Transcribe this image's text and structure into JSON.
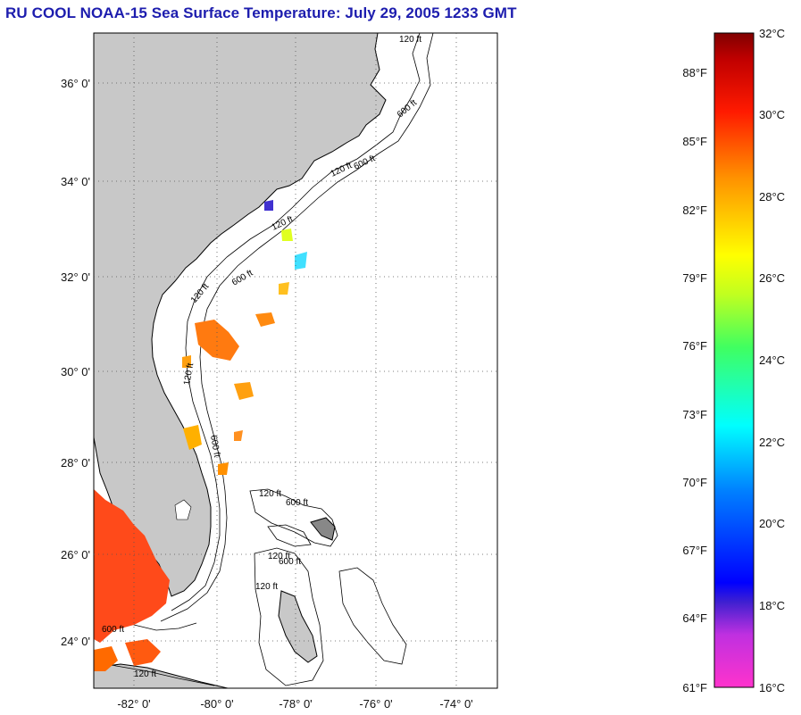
{
  "title": "RU COOL  NOAA-15  Sea Surface Temperature:  July 29, 2005 1233 GMT",
  "map": {
    "lat_labels": [
      "36° 0'",
      "34° 0'",
      "32° 0'",
      "30° 0'",
      "28° 0'",
      "26° 0'",
      "24° 0'"
    ],
    "lon_labels": [
      "-82° 0'",
      "-80° 0'",
      "-78° 0'",
      "-76° 0'",
      "-74° 0'"
    ],
    "contour_labels": [
      "120 ft",
      "600 ft",
      "120 ft",
      "600 ft",
      "120 ft",
      "600 ft",
      "120 ft",
      "600 ft",
      "120 ft",
      "120 ft",
      "600 ft",
      "120 ft",
      "600 ft",
      "120 ft",
      "600 ft",
      "120 ft"
    ],
    "land_color": "#c8c8c8",
    "ocean_color": "#ffffff"
  },
  "colorbar": {
    "celsius_labels": [
      "32°C",
      "30°C",
      "28°C",
      "26°C",
      "24°C",
      "22°C",
      "20°C",
      "18°C",
      "16°C"
    ],
    "fahrenheit_labels": [
      "88°F",
      "85°F",
      "82°F",
      "79°F",
      "76°F",
      "73°F",
      "70°F",
      "67°F",
      "64°F",
      "61°F"
    ]
  }
}
